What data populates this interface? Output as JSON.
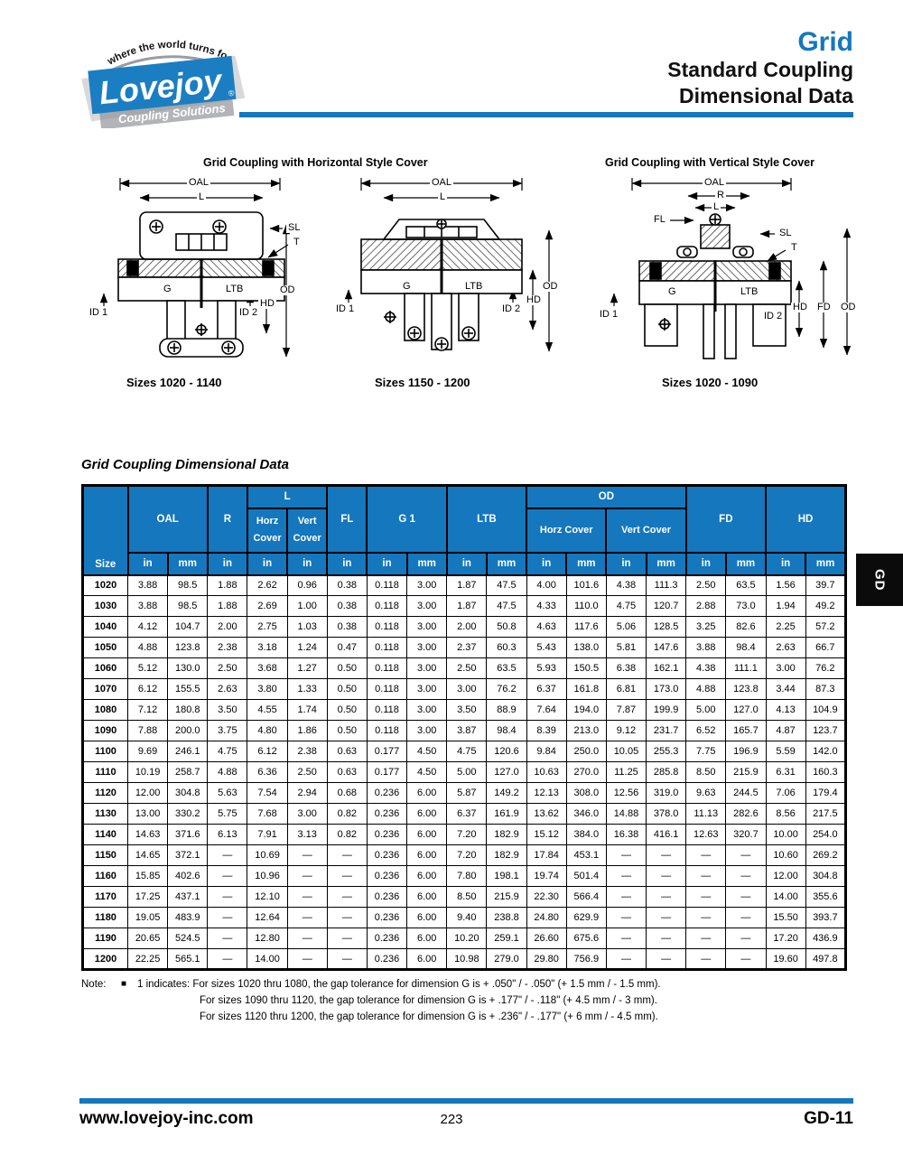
{
  "colors": {
    "accent_blue": "#1577bd",
    "tab_black": "#0b0b0b",
    "logo_gray": "#b2b4b7"
  },
  "header": {
    "logo": {
      "tagline": "where the world turns for",
      "brand": "Lovejoy",
      "registered": "®",
      "subtitle": "Coupling Solutions"
    },
    "product": "Grid",
    "title_line1": "Standard Coupling",
    "title_line2": "Dimensional Data"
  },
  "diagrams": [
    {
      "title": "Grid Coupling with Horizontal Style Cover",
      "caption": "Sizes 1020 - 1140",
      "labels": {
        "oal": "OAL",
        "l": "L",
        "sl": "SL",
        "t": "T",
        "g": "G",
        "ltb": "LTB",
        "id1": "ID 1",
        "id2": "ID 2",
        "hd": "HD",
        "od": "OD"
      }
    },
    {
      "caption": "Sizes 1150 - 1200",
      "labels": {
        "oal": "OAL",
        "l": "L",
        "g": "G",
        "ltb": "LTB",
        "id1": "ID 1",
        "id2": "ID 2",
        "hd": "HD",
        "od": "OD"
      }
    },
    {
      "title": "Grid Coupling with Vertical Style Cover",
      "caption": "Sizes 1020 - 1090",
      "labels": {
        "oal": "OAL",
        "r": "R",
        "l": "L",
        "fl": "FL",
        "sl": "SL",
        "t": "T",
        "g": "G",
        "ltb": "LTB",
        "id1": "ID 1",
        "id2": "ID 2",
        "hd": "HD",
        "fd": "FD",
        "od": "OD"
      }
    }
  ],
  "section_title": "Grid Coupling Dimensional Data",
  "side_tab": "GD",
  "table": {
    "header": {
      "size_label": "Size",
      "groups": [
        {
          "label": "OAL",
          "cols": 2,
          "units": [
            "in",
            "mm"
          ]
        },
        {
          "label": "R",
          "cols": 1,
          "units": [
            "in"
          ]
        },
        {
          "label": "L",
          "cols": 2,
          "sub": [
            "Horz Cover",
            "Vert Cover"
          ],
          "units": [
            "in",
            "in"
          ]
        },
        {
          "label": "FL",
          "cols": 1,
          "units": [
            "in"
          ]
        },
        {
          "label": "G 1",
          "cols": 2,
          "units": [
            "in",
            "mm"
          ]
        },
        {
          "label": "LTB",
          "cols": 2,
          "units": [
            "in",
            "mm"
          ]
        },
        {
          "label": "OD",
          "cols": 4,
          "sub": [
            "Horz Cover",
            "Vert Cover"
          ],
          "units": [
            "in",
            "mm",
            "in",
            "mm"
          ]
        },
        {
          "label": "FD",
          "cols": 2,
          "units": [
            "in",
            "mm"
          ]
        },
        {
          "label": "HD",
          "cols": 2,
          "units": [
            "in",
            "mm"
          ]
        }
      ]
    },
    "rows": [
      [
        "1020",
        "3.88",
        "98.5",
        "1.88",
        "2.62",
        "0.96",
        "0.38",
        "0.118",
        "3.00",
        "1.87",
        "47.5",
        "4.00",
        "101.6",
        "4.38",
        "111.3",
        "2.50",
        "63.5",
        "1.56",
        "39.7"
      ],
      [
        "1030",
        "3.88",
        "98.5",
        "1.88",
        "2.69",
        "1.00",
        "0.38",
        "0.118",
        "3.00",
        "1.87",
        "47.5",
        "4.33",
        "110.0",
        "4.75",
        "120.7",
        "2.88",
        "73.0",
        "1.94",
        "49.2"
      ],
      [
        "1040",
        "4.12",
        "104.7",
        "2.00",
        "2.75",
        "1.03",
        "0.38",
        "0.118",
        "3.00",
        "2.00",
        "50.8",
        "4.63",
        "117.6",
        "5.06",
        "128.5",
        "3.25",
        "82.6",
        "2.25",
        "57.2"
      ],
      [
        "1050",
        "4.88",
        "123.8",
        "2.38",
        "3.18",
        "1.24",
        "0.47",
        "0.118",
        "3.00",
        "2.37",
        "60.3",
        "5.43",
        "138.0",
        "5.81",
        "147.6",
        "3.88",
        "98.4",
        "2.63",
        "66.7"
      ],
      [
        "1060",
        "5.12",
        "130.0",
        "2.50",
        "3.68",
        "1.27",
        "0.50",
        "0.118",
        "3.00",
        "2.50",
        "63.5",
        "5.93",
        "150.5",
        "6.38",
        "162.1",
        "4.38",
        "111.1",
        "3.00",
        "76.2"
      ],
      [
        "1070",
        "6.12",
        "155.5",
        "2.63",
        "3.80",
        "1.33",
        "0.50",
        "0.118",
        "3.00",
        "3.00",
        "76.2",
        "6.37",
        "161.8",
        "6.81",
        "173.0",
        "4.88",
        "123.8",
        "3.44",
        "87.3"
      ],
      [
        "1080",
        "7.12",
        "180.8",
        "3.50",
        "4.55",
        "1.74",
        "0.50",
        "0.118",
        "3.00",
        "3.50",
        "88.9",
        "7.64",
        "194.0",
        "7.87",
        "199.9",
        "5.00",
        "127.0",
        "4.13",
        "104.9"
      ],
      [
        "1090",
        "7.88",
        "200.0",
        "3.75",
        "4.80",
        "1.86",
        "0.50",
        "0.118",
        "3.00",
        "3.87",
        "98.4",
        "8.39",
        "213.0",
        "9.12",
        "231.7",
        "6.52",
        "165.7",
        "4.87",
        "123.7"
      ],
      [
        "1100",
        "9.69",
        "246.1",
        "4.75",
        "6.12",
        "2.38",
        "0.63",
        "0.177",
        "4.50",
        "4.75",
        "120.6",
        "9.84",
        "250.0",
        "10.05",
        "255.3",
        "7.75",
        "196.9",
        "5.59",
        "142.0"
      ],
      [
        "1110",
        "10.19",
        "258.7",
        "4.88",
        "6.36",
        "2.50",
        "0.63",
        "0.177",
        "4.50",
        "5.00",
        "127.0",
        "10.63",
        "270.0",
        "11.25",
        "285.8",
        "8.50",
        "215.9",
        "6.31",
        "160.3"
      ],
      [
        "1120",
        "12.00",
        "304.8",
        "5.63",
        "7.54",
        "2.94",
        "0.68",
        "0.236",
        "6.00",
        "5.87",
        "149.2",
        "12.13",
        "308.0",
        "12.56",
        "319.0",
        "9.63",
        "244.5",
        "7.06",
        "179.4"
      ],
      [
        "1130",
        "13.00",
        "330.2",
        "5.75",
        "7.68",
        "3.00",
        "0.82",
        "0.236",
        "6.00",
        "6.37",
        "161.9",
        "13.62",
        "346.0",
        "14.88",
        "378.0",
        "11.13",
        "282.6",
        "8.56",
        "217.5"
      ],
      [
        "1140",
        "14.63",
        "371.6",
        "6.13",
        "7.91",
        "3.13",
        "0.82",
        "0.236",
        "6.00",
        "7.20",
        "182.9",
        "15.12",
        "384.0",
        "16.38",
        "416.1",
        "12.63",
        "320.7",
        "10.00",
        "254.0"
      ],
      [
        "1150",
        "14.65",
        "372.1",
        "—",
        "10.69",
        "—",
        "—",
        "0.236",
        "6.00",
        "7.20",
        "182.9",
        "17.84",
        "453.1",
        "—",
        "—",
        "—",
        "—",
        "10.60",
        "269.2"
      ],
      [
        "1160",
        "15.85",
        "402.6",
        "—",
        "10.96",
        "—",
        "—",
        "0.236",
        "6.00",
        "7.80",
        "198.1",
        "19.74",
        "501.4",
        "—",
        "—",
        "—",
        "—",
        "12.00",
        "304.8"
      ],
      [
        "1170",
        "17.25",
        "437.1",
        "—",
        "12.10",
        "—",
        "—",
        "0.236",
        "6.00",
        "8.50",
        "215.9",
        "22.30",
        "566.4",
        "—",
        "—",
        "—",
        "—",
        "14.00",
        "355.6"
      ],
      [
        "1180",
        "19.05",
        "483.9",
        "—",
        "12.64",
        "—",
        "—",
        "0.236",
        "6.00",
        "9.40",
        "238.8",
        "24.80",
        "629.9",
        "—",
        "—",
        "—",
        "—",
        "15.50",
        "393.7"
      ],
      [
        "1190",
        "20.65",
        "524.5",
        "—",
        "12.80",
        "—",
        "—",
        "0.236",
        "6.00",
        "10.20",
        "259.1",
        "26.60",
        "675.6",
        "—",
        "—",
        "—",
        "—",
        "17.20",
        "436.9"
      ],
      [
        "1200",
        "22.25",
        "565.1",
        "—",
        "14.00",
        "—",
        "—",
        "0.236",
        "6.00",
        "10.98",
        "279.0",
        "29.80",
        "756.9",
        "—",
        "—",
        "—",
        "—",
        "19.60",
        "497.8"
      ]
    ]
  },
  "note": {
    "label": "Note:",
    "marker": "■",
    "line1": "1 indicates: For sizes 1020 thru 1080, the gap tolerance for dimension G is + .050\" / - .050\" (+ 1.5 mm / - 1.5 mm).",
    "line2": "For sizes 1090 thru 1120, the gap tolerance for dimension G is + .177\" / - .118\" (+ 4.5 mm / - 3 mm).",
    "line3": "For sizes 1120 thru 1200, the gap tolerance for dimension G is + .236\" / - .177\" (+ 6 mm / - 4.5 mm)."
  },
  "footer": {
    "website": "www.lovejoy-inc.com",
    "page_number": "223",
    "code": "GD-11"
  }
}
